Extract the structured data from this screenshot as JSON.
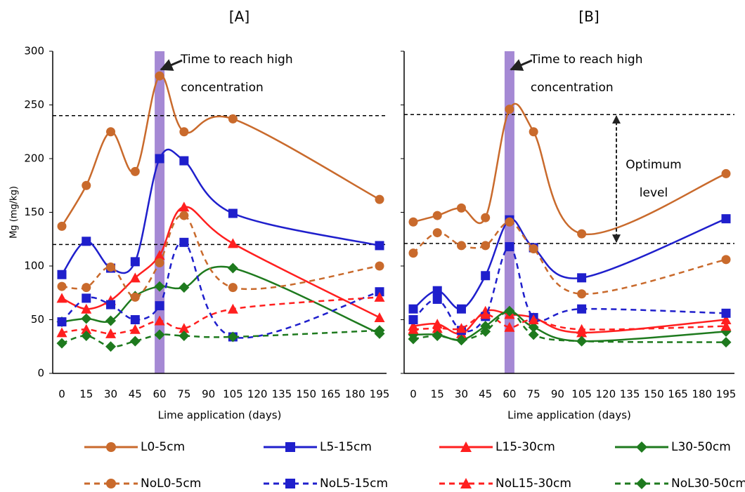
{
  "chart_data": [
    {
      "type": "line",
      "title": "[A]",
      "x_label": "Lime application (days)",
      "y_label": "Mg (mg/kg)",
      "annotation": [
        "Time to reach high",
        "concentration"
      ],
      "x": [
        0,
        15,
        30,
        45,
        60,
        75,
        105,
        195
      ],
      "xlim": [
        0,
        195
      ],
      "xticks": [
        0,
        15,
        30,
        45,
        60,
        75,
        90,
        105,
        120,
        135,
        150,
        165,
        180,
        195
      ],
      "ylim": [
        0,
        300
      ],
      "yticks": [
        0,
        50,
        100,
        150,
        200,
        250,
        300
      ],
      "show_ytick_labels": true,
      "hlines": [
        240,
        120
      ],
      "highlight_x": 60,
      "smooth": true,
      "series": [
        {
          "name": "L0-5cm",
          "color": "#c96a2c",
          "marker": "circle",
          "linestyle": "solid",
          "values": [
            137,
            175,
            225,
            188,
            277,
            225,
            237,
            162
          ]
        },
        {
          "name": "L5-15cm",
          "color": "#1f1fcc",
          "marker": "square",
          "linestyle": "solid",
          "values": [
            92,
            123,
            98,
            104,
            200,
            198,
            149,
            119
          ]
        },
        {
          "name": "L15-30cm",
          "color": "#ff1f1f",
          "marker": "triangle",
          "linestyle": "solid",
          "values": [
            70,
            60,
            68,
            89,
            110,
            155,
            121,
            52
          ]
        },
        {
          "name": "L30-50cm",
          "color": "#1e7a1e",
          "marker": "diamond",
          "linestyle": "solid",
          "values": [
            48,
            51,
            49,
            72,
            81,
            80,
            98,
            37
          ]
        },
        {
          "name": "NoL0-5cm",
          "color": "#c96a2c",
          "marker": "circle",
          "linestyle": "dashed",
          "values": [
            81,
            80,
            99,
            71,
            103,
            147,
            80,
            100
          ]
        },
        {
          "name": "NoL5-15cm",
          "color": "#1f1fcc",
          "marker": "square",
          "linestyle": "dashed",
          "values": [
            48,
            70,
            64,
            50,
            63,
            122,
            34,
            76
          ]
        },
        {
          "name": "NoL15-30cm",
          "color": "#ff1f1f",
          "marker": "triangle",
          "linestyle": "dashed",
          "values": [
            38,
            41,
            37,
            41,
            49,
            42,
            60,
            71
          ]
        },
        {
          "name": "NoL30-50cm",
          "color": "#1e7a1e",
          "marker": "diamond",
          "linestyle": "dashed",
          "values": [
            28,
            35,
            25,
            30,
            36,
            35,
            34,
            40
          ]
        }
      ]
    },
    {
      "type": "line",
      "title": "[B]",
      "x_label": "Lime application (days)",
      "annotation": [
        "Time to reach high",
        "concentration"
      ],
      "range_label": [
        "Optimum",
        "level"
      ],
      "x": [
        0,
        15,
        30,
        45,
        60,
        75,
        105,
        195
      ],
      "xlim": [
        0,
        195
      ],
      "xticks": [
        0,
        15,
        30,
        45,
        60,
        75,
        90,
        105,
        120,
        135,
        150,
        165,
        180,
        195
      ],
      "ylim": [
        0,
        300
      ],
      "yticks": [
        0,
        50,
        100,
        150,
        200,
        250,
        300
      ],
      "show_ytick_labels": false,
      "hlines": [
        241,
        121
      ],
      "highlight_x": 60,
      "smooth": true,
      "series": [
        {
          "name": "L0-5cm",
          "color": "#c96a2c",
          "marker": "circle",
          "linestyle": "solid",
          "values": [
            141,
            147,
            154,
            145,
            246,
            225,
            130,
            186
          ]
        },
        {
          "name": "L5-15cm",
          "color": "#1f1fcc",
          "marker": "square",
          "linestyle": "solid",
          "values": [
            60,
            77,
            60,
            91,
            143,
            117,
            89,
            144
          ]
        },
        {
          "name": "L15-30cm",
          "color": "#ff1f1f",
          "marker": "triangle",
          "linestyle": "solid",
          "values": [
            44,
            46,
            37,
            58,
            55,
            52,
            38,
            50
          ]
        },
        {
          "name": "L30-50cm",
          "color": "#1e7a1e",
          "marker": "diamond",
          "linestyle": "solid",
          "values": [
            36,
            36,
            31,
            44,
            58,
            43,
            30,
            39
          ]
        },
        {
          "name": "NoL0-5cm",
          "color": "#c96a2c",
          "marker": "circle",
          "linestyle": "dashed",
          "values": [
            112,
            131,
            119,
            119,
            141,
            116,
            74,
            106
          ]
        },
        {
          "name": "NoL5-15cm",
          "color": "#1f1fcc",
          "marker": "square",
          "linestyle": "dashed",
          "values": [
            50,
            69,
            40,
            53,
            118,
            52,
            60,
            56
          ]
        },
        {
          "name": "NoL15-30cm",
          "color": "#ff1f1f",
          "marker": "triangle",
          "linestyle": "dashed",
          "values": [
            41,
            42,
            42,
            55,
            43,
            50,
            41,
            44
          ]
        },
        {
          "name": "NoL30-50cm",
          "color": "#1e7a1e",
          "marker": "diamond",
          "linestyle": "dashed",
          "values": [
            32,
            35,
            31,
            39,
            58,
            36,
            30,
            29
          ]
        }
      ]
    }
  ]
}
